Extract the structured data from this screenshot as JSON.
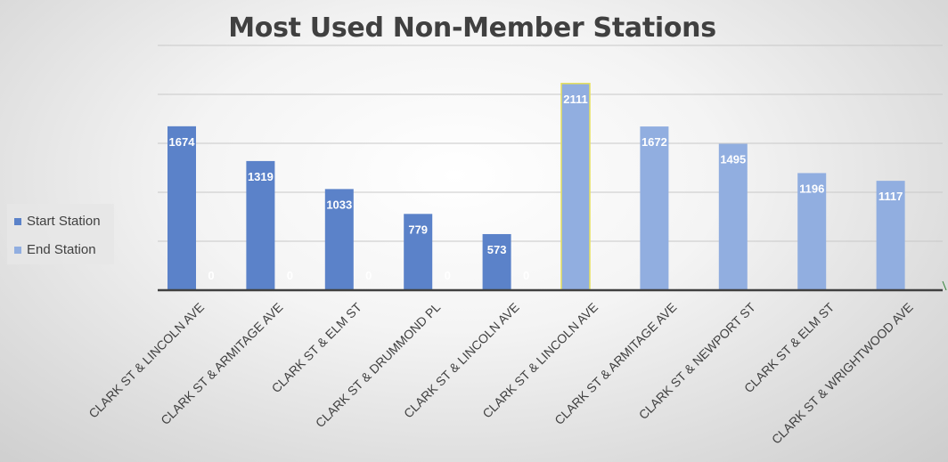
{
  "chart_data": {
    "type": "bar",
    "title": "Most Used Non-Member Stations",
    "categories": [
      "CLARK ST & LINCOLN AVE",
      "CLARK ST & ARMITAGE AVE",
      "CLARK ST & ELM ST",
      "CLARK ST & DRUMMOND PL",
      "CLARK ST & LINCOLN AVE",
      "CLARK ST & LINCOLN AVE",
      "CLARK ST & ARMITAGE AVE",
      "CLARK ST & NEWPORT ST",
      "CLARK ST & ELM ST",
      "CLARK ST & WRIGHTWOOD AVE"
    ],
    "series": [
      {
        "name": "Start Station",
        "color": "#5b82c9",
        "values": [
          1674,
          1319,
          1033,
          779,
          573,
          null,
          null,
          null,
          null,
          null
        ]
      },
      {
        "name": "End Station",
        "color": "#91aee0",
        "values": [
          0,
          0,
          0,
          0,
          0,
          2111,
          1672,
          1495,
          1196,
          1117
        ]
      }
    ],
    "ylim": [
      0,
      2500
    ],
    "grid": true,
    "legend_position": "left",
    "highlighted_bar": {
      "series": "End Station",
      "category_index": 5,
      "outline_color": "#e8e15a"
    }
  }
}
